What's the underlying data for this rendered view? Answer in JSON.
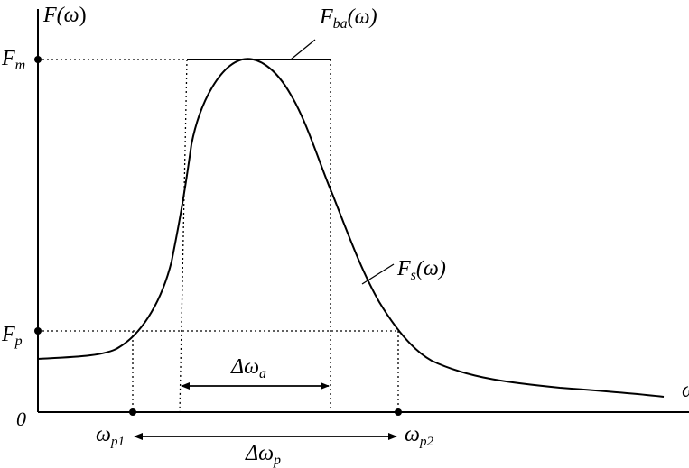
{
  "labels": {
    "y_axis": {
      "base": "F(",
      "greek": "ω",
      "close": ")"
    },
    "x_axis_partial": "ω",
    "origin": "0",
    "fm": {
      "base": "F",
      "sub": "m"
    },
    "fp": {
      "base": "F",
      "sub": "p"
    },
    "fba": {
      "base": "F",
      "sub": "ba",
      "arg": "(ω)"
    },
    "fs": {
      "base": "F",
      "sub": "s",
      "arg": "(ω)"
    },
    "wp1": {
      "base": "ω",
      "sub": "p1"
    },
    "wp2": {
      "base": "ω",
      "sub": "p2"
    },
    "delta_wa": {
      "base": "Δω",
      "sub": "a"
    },
    "delta_wp": {
      "base": "Δω",
      "sub": "p"
    }
  },
  "colors": {
    "ink": "#000000",
    "background": "#ffffff"
  }
}
